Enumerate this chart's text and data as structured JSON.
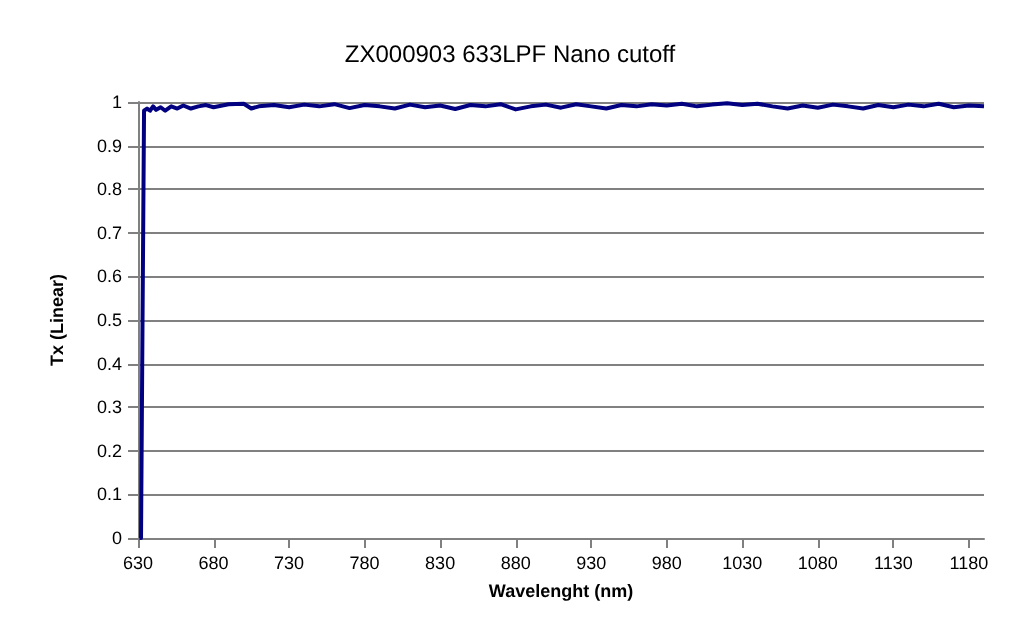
{
  "chart_data": {
    "type": "line",
    "title": "ZX000903 633LPF Nano cutoff",
    "xlabel": "Wavelenght (nm)",
    "ylabel": "Tx (Linear)",
    "xlim": [
      630,
      1190
    ],
    "xticks": [
      630,
      680,
      730,
      780,
      830,
      880,
      930,
      980,
      1030,
      1080,
      1130,
      1180
    ],
    "ylim": [
      0,
      1
    ],
    "yticks": [
      0,
      0.1,
      0.2,
      0.3,
      0.4,
      0.5,
      0.6,
      0.7,
      0.8,
      0.9,
      1
    ],
    "grid": "y",
    "marker": "none",
    "line_style": "solid",
    "series": [
      {
        "color": "#000080",
        "x": [
          631,
          632,
          633,
          634,
          636,
          638,
          640,
          642,
          645,
          648,
          652,
          656,
          660,
          665,
          670,
          675,
          680,
          690,
          700,
          705,
          710,
          720,
          730,
          740,
          750,
          760,
          770,
          780,
          790,
          800,
          810,
          820,
          830,
          840,
          850,
          860,
          870,
          880,
          890,
          900,
          910,
          920,
          930,
          940,
          950,
          960,
          970,
          980,
          990,
          1000,
          1010,
          1020,
          1030,
          1040,
          1050,
          1060,
          1070,
          1080,
          1090,
          1100,
          1110,
          1120,
          1130,
          1140,
          1150,
          1160,
          1170,
          1180,
          1190
        ],
        "values": [
          0,
          0,
          0.5,
          0.98,
          0.985,
          0.98,
          0.99,
          0.982,
          0.988,
          0.98,
          0.99,
          0.985,
          0.992,
          0.985,
          0.99,
          0.993,
          0.988,
          0.995,
          0.996,
          0.985,
          0.99,
          0.993,
          0.988,
          0.994,
          0.99,
          0.995,
          0.986,
          0.993,
          0.99,
          0.985,
          0.994,
          0.988,
          0.992,
          0.984,
          0.993,
          0.99,
          0.995,
          0.983,
          0.99,
          0.994,
          0.987,
          0.995,
          0.99,
          0.985,
          0.993,
          0.99,
          0.995,
          0.992,
          0.996,
          0.99,
          0.994,
          0.997,
          0.993,
          0.996,
          0.99,
          0.985,
          0.992,
          0.987,
          0.994,
          0.99,
          0.985,
          0.993,
          0.988,
          0.994,
          0.99,
          0.996,
          0.988,
          0.992,
          0.99
        ]
      }
    ]
  }
}
